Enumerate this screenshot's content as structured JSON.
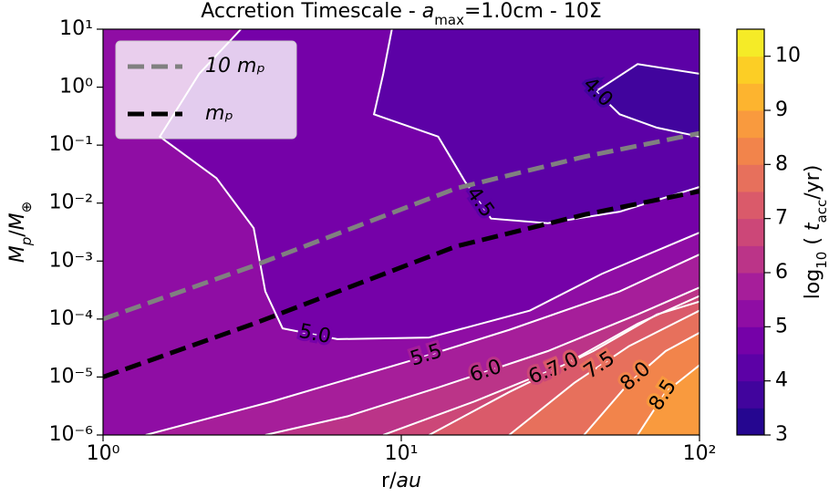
{
  "chart_data": {
    "type": "contour",
    "title": [
      {
        "text": "Accretion Timescale - "
      },
      {
        "text": "a",
        "italic": true
      },
      {
        "text": "max",
        "sub": true
      },
      {
        "text": "=1.0cm - 10Σ"
      }
    ],
    "xlabel": [
      {
        "text": "r/"
      },
      {
        "text": "au",
        "italic": true
      }
    ],
    "ylabel": [
      {
        "text": "M",
        "italic": true
      },
      {
        "text": "p",
        "italic": true,
        "sub": true
      },
      {
        "text": "/"
      },
      {
        "text": "M",
        "italic": true
      },
      {
        "text": "⊕",
        "sub": true
      }
    ],
    "xscale": "log",
    "yscale": "log",
    "xlim": [
      1,
      100
    ],
    "ylim": [
      1e-06,
      10
    ],
    "xticks": [
      {
        "value": 1,
        "label": "10⁰"
      },
      {
        "value": 10,
        "label": "10¹"
      },
      {
        "value": 100,
        "label": "10²"
      }
    ],
    "yticks": [
      {
        "value": 1e-06,
        "label": "10⁻⁶"
      },
      {
        "value": 1e-05,
        "label": "10⁻⁵"
      },
      {
        "value": 0.0001,
        "label": "10⁻⁴"
      },
      {
        "value": 0.001,
        "label": "10⁻³"
      },
      {
        "value": 0.01,
        "label": "10⁻²"
      },
      {
        "value": 0.1,
        "label": "10⁻¹"
      },
      {
        "value": 1,
        "label": "10⁰"
      },
      {
        "value": 10,
        "label": "10¹"
      }
    ],
    "colorbar": {
      "label": [
        {
          "text": "log"
        },
        {
          "text": "10",
          "sub": true
        },
        {
          "text": " ( "
        },
        {
          "text": "t",
          "italic": true
        },
        {
          "text": "acc",
          "sub": true
        },
        {
          "text": "/yr)"
        }
      ],
      "lim": [
        3,
        10.5
      ],
      "ticks": [
        3,
        4,
        5,
        6,
        7,
        8,
        9,
        10
      ],
      "colors": [
        "#250690",
        "#41049d",
        "#5c01a6",
        "#7501a8",
        "#8f0da4",
        "#a61e9a",
        "#bb3488",
        "#cc4778",
        "#da5a6a",
        "#e7705c",
        "#f2844b",
        "#f99a3e",
        "#fdb42f",
        "#fcce25",
        "#f5eb27"
      ]
    },
    "contour_color": "#ffffff",
    "contours": [
      {
        "level": {
          "value": 5,
          "label": "5.0"
        },
        "x": [
          2.9,
          2.1,
          1.55,
          2.4,
          3.2,
          3.5,
          4.0,
          6.1,
          12.4,
          27,
          47,
          100
        ],
        "y": [
          10,
          1.7,
          0.14,
          0.027,
          0.0037,
          0.0003,
          6.9e-05,
          4.5e-05,
          4.8e-05,
          0.00014,
          0.0006,
          0.0031
        ]
      },
      {
        "level": 4.5,
        "x": [
          9.3,
          8.7,
          8.1,
          13.3,
          16.4,
          20,
          31,
          54,
          100
        ],
        "y": [
          10,
          1.7,
          0.34,
          0.14,
          0.023,
          0.0054,
          0.0045,
          0.0071,
          0.019
        ]
      },
      {
        "level": {
          "value": 4,
          "label": "4.0"
        },
        "x": [
          100,
          62,
          45,
          54,
          72,
          100
        ],
        "y": [
          1.7,
          2.5,
          0.85,
          0.34,
          0.2,
          0.14
        ]
      },
      {
        "level": 5.5,
        "x": [
          1.39,
          3.7,
          10.7,
          23,
          54,
          100
        ],
        "y": [
          1e-06,
          3.8e-06,
          1.9e-05,
          6.5e-05,
          0.0003,
          0.0013
        ]
      },
      {
        "level": {
          "value": 6,
          "label": "6.0"
        },
        "x": [
          3.5,
          6.6,
          13.3,
          31,
          62,
          100
        ],
        "y": [
          1e-06,
          2.1e-06,
          6.6e-06,
          2.8e-05,
          0.00012,
          0.00035
        ]
      },
      {
        "level": 6.5,
        "x": [
          8.7,
          17.6,
          35,
          62,
          100
        ],
        "y": [
          1e-06,
          3.8e-06,
          1.6e-05,
          8.3e-05,
          0.00025
        ]
      },
      {
        "level": {
          "value": 7,
          "label": "7.0"
        },
        "x": [
          12.4,
          23,
          44,
          72,
          100
        ],
        "y": [
          1e-06,
          5.5e-06,
          2.8e-05,
          0.00012,
          0.0002
        ]
      },
      {
        "level": 7.5,
        "x": [
          23,
          38,
          58,
          100
        ],
        "y": [
          1e-06,
          7.9e-06,
          3.4e-05,
          0.00014
        ]
      },
      {
        "level": {
          "value": 8,
          "label": "8.0"
        },
        "x": [
          41,
          58,
          77,
          100
        ],
        "y": [
          1e-06,
          7.9e-06,
          2.8e-05,
          5.8e-05
        ]
      },
      {
        "level": 8.5,
        "x": [
          62,
          77,
          100
        ],
        "y": [
          1e-06,
          5.5e-06,
          1.6e-05
        ]
      }
    ],
    "legend": "upper left",
    "series": [
      {
        "name": "10 mₚ",
        "color": "#808080",
        "dashed": true,
        "x": [
          1,
          3.2,
          15.3,
          41,
          100
        ],
        "values": [
          0.0001,
          0.00083,
          0.018,
          0.063,
          0.16
        ]
      },
      {
        "name": "mₚ",
        "color": "#000000",
        "dashed": true,
        "x": [
          1,
          3.2,
          15.3,
          41,
          100
        ],
        "values": [
          1e-05,
          8.3e-05,
          0.0018,
          0.0063,
          0.016
        ]
      }
    ]
  }
}
